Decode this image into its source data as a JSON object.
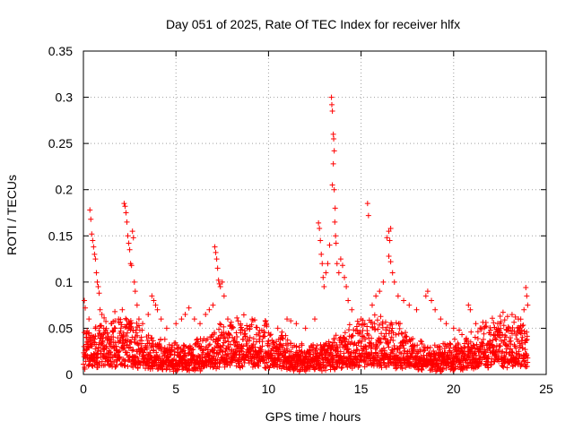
{
  "chart_data": {
    "type": "scatter",
    "title": "Day 051 of 2025, Rate Of TEC Index for receiver hlfx",
    "xlabel": "GPS time / hours",
    "ylabel": "ROTI / TECUs",
    "xlim": [
      0,
      25
    ],
    "ylim": [
      0,
      0.35
    ],
    "xticks": [
      0,
      5,
      10,
      15,
      20,
      25
    ],
    "xtick_labels": [
      "0",
      "5",
      "10",
      "15",
      "20",
      "25"
    ],
    "yticks": [
      0,
      0.05,
      0.1,
      0.15,
      0.2,
      0.25,
      0.3,
      0.35
    ],
    "ytick_labels": [
      "0",
      "0.05",
      "0.1",
      "0.15",
      "0.2",
      "0.25",
      "0.3",
      "0.35"
    ],
    "grid": true,
    "marker": "+",
    "series": [
      {
        "name": "ROTI",
        "color": "#ff0000",
        "points": [
          [
            0.05,
            0.08
          ],
          [
            0.1,
            0.072
          ],
          [
            0.15,
            0.04
          ],
          [
            0.2,
            0.035
          ],
          [
            0.25,
            0.03
          ],
          [
            0.3,
            0.06
          ],
          [
            0.35,
            0.178
          ],
          [
            0.4,
            0.168
          ],
          [
            0.45,
            0.152
          ],
          [
            0.5,
            0.145
          ],
          [
            0.55,
            0.138
          ],
          [
            0.6,
            0.13
          ],
          [
            0.65,
            0.125
          ],
          [
            0.7,
            0.11
          ],
          [
            0.75,
            0.1
          ],
          [
            0.8,
            0.095
          ],
          [
            0.85,
            0.088
          ],
          [
            0.9,
            0.07
          ],
          [
            1.0,
            0.065
          ],
          [
            1.1,
            0.05
          ],
          [
            1.3,
            0.045
          ],
          [
            1.5,
            0.055
          ],
          [
            1.7,
            0.068
          ],
          [
            1.9,
            0.06
          ],
          [
            2.1,
            0.07
          ],
          [
            2.2,
            0.185
          ],
          [
            2.25,
            0.182
          ],
          [
            2.3,
            0.175
          ],
          [
            2.35,
            0.165
          ],
          [
            2.4,
            0.15
          ],
          [
            2.45,
            0.142
          ],
          [
            2.5,
            0.135
          ],
          [
            2.55,
            0.12
          ],
          [
            2.6,
            0.118
          ],
          [
            2.65,
            0.155
          ],
          [
            2.7,
            0.148
          ],
          [
            2.75,
            0.1
          ],
          [
            2.8,
            0.09
          ],
          [
            2.9,
            0.075
          ],
          [
            3.0,
            0.06
          ],
          [
            3.2,
            0.055
          ],
          [
            3.5,
            0.065
          ],
          [
            3.7,
            0.085
          ],
          [
            3.8,
            0.08
          ],
          [
            3.9,
            0.075
          ],
          [
            4.0,
            0.07
          ],
          [
            4.2,
            0.06
          ],
          [
            4.5,
            0.05
          ],
          [
            5.0,
            0.055
          ],
          [
            5.3,
            0.06
          ],
          [
            5.5,
            0.065
          ],
          [
            5.7,
            0.072
          ],
          [
            6.0,
            0.06
          ],
          [
            6.3,
            0.055
          ],
          [
            6.6,
            0.065
          ],
          [
            6.8,
            0.07
          ],
          [
            7.0,
            0.075
          ],
          [
            7.1,
            0.138
          ],
          [
            7.15,
            0.132
          ],
          [
            7.2,
            0.125
          ],
          [
            7.25,
            0.115
          ],
          [
            7.3,
            0.102
          ],
          [
            7.35,
            0.098
          ],
          [
            7.4,
            0.095
          ],
          [
            7.5,
            0.1
          ],
          [
            7.6,
            0.085
          ],
          [
            7.8,
            0.06
          ],
          [
            8.0,
            0.05
          ],
          [
            8.5,
            0.045
          ],
          [
            9.0,
            0.04
          ],
          [
            9.5,
            0.038
          ],
          [
            10.0,
            0.045
          ],
          [
            10.5,
            0.05
          ],
          [
            11.0,
            0.06
          ],
          [
            11.2,
            0.058
          ],
          [
            11.5,
            0.055
          ],
          [
            12.0,
            0.05
          ],
          [
            12.5,
            0.06
          ],
          [
            12.7,
            0.164
          ],
          [
            12.75,
            0.158
          ],
          [
            12.8,
            0.145
          ],
          [
            12.85,
            0.13
          ],
          [
            12.9,
            0.12
          ],
          [
            12.95,
            0.105
          ],
          [
            13.0,
            0.095
          ],
          [
            13.1,
            0.11
          ],
          [
            13.2,
            0.12
          ],
          [
            13.3,
            0.14
          ],
          [
            13.4,
            0.3
          ],
          [
            13.42,
            0.292
          ],
          [
            13.45,
            0.285
          ],
          [
            13.5,
            0.26
          ],
          [
            13.52,
            0.255
          ],
          [
            13.55,
            0.242
          ],
          [
            13.5,
            0.228
          ],
          [
            13.45,
            0.205
          ],
          [
            13.55,
            0.2
          ],
          [
            13.6,
            0.18
          ],
          [
            13.58,
            0.165
          ],
          [
            13.62,
            0.15
          ],
          [
            13.65,
            0.142
          ],
          [
            13.7,
            0.12
          ],
          [
            13.8,
            0.11
          ],
          [
            13.9,
            0.125
          ],
          [
            14.0,
            0.118
          ],
          [
            14.1,
            0.105
          ],
          [
            14.2,
            0.095
          ],
          [
            14.3,
            0.08
          ],
          [
            14.5,
            0.07
          ],
          [
            15.0,
            0.06
          ],
          [
            15.2,
            0.055
          ],
          [
            15.35,
            0.185
          ],
          [
            15.4,
            0.172
          ],
          [
            15.6,
            0.075
          ],
          [
            15.8,
            0.085
          ],
          [
            16.0,
            0.09
          ],
          [
            16.2,
            0.1
          ],
          [
            16.4,
            0.148
          ],
          [
            16.5,
            0.155
          ],
          [
            16.55,
            0.145
          ],
          [
            16.6,
            0.158
          ],
          [
            16.5,
            0.128
          ],
          [
            16.6,
            0.122
          ],
          [
            16.7,
            0.11
          ],
          [
            16.8,
            0.1
          ],
          [
            17.0,
            0.085
          ],
          [
            17.3,
            0.08
          ],
          [
            17.6,
            0.075
          ],
          [
            18.0,
            0.07
          ],
          [
            18.5,
            0.085
          ],
          [
            18.6,
            0.09
          ],
          [
            18.8,
            0.08
          ],
          [
            19.0,
            0.07
          ],
          [
            19.3,
            0.06
          ],
          [
            19.6,
            0.055
          ],
          [
            20.0,
            0.05
          ],
          [
            20.3,
            0.048
          ],
          [
            20.8,
            0.075
          ],
          [
            20.9,
            0.07
          ],
          [
            21.2,
            0.055
          ],
          [
            21.5,
            0.05
          ],
          [
            22.0,
            0.048
          ],
          [
            22.5,
            0.055
          ],
          [
            23.0,
            0.05
          ],
          [
            23.5,
            0.06
          ],
          [
            23.8,
            0.07
          ],
          [
            23.9,
            0.094
          ],
          [
            23.95,
            0.085
          ],
          [
            24.0,
            0.075
          ]
        ]
      }
    ]
  }
}
